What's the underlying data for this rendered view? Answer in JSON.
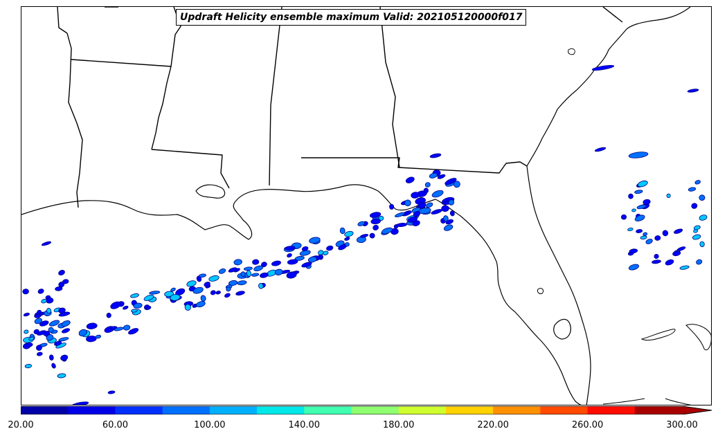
{
  "title": "Updraft Helicity ensemble maximum Valid: 202105120000f017",
  "colorbar": {
    "colors": [
      "#0000a8",
      "#0000e6",
      "#0030ff",
      "#0070ff",
      "#00b0ff",
      "#00e8e8",
      "#40ffb0",
      "#90ff70",
      "#d0ff30",
      "#ffd200",
      "#ff9000",
      "#ff4a00",
      "#ff0c00",
      "#a80000"
    ],
    "tick_labels": [
      "20.00",
      "60.00",
      "100.00",
      "140.00",
      "180.00",
      "220.00",
      "260.00",
      "300.00"
    ],
    "extend": "max"
  },
  "contour_colors": {
    "low": "#0000ff",
    "mid": "#0070ff",
    "high": "#00c8ff",
    "edge": "#000080"
  },
  "map": {
    "region": "Southeastern United States and Gulf of Mexico",
    "projection_land": "white",
    "boundaries": "black"
  }
}
